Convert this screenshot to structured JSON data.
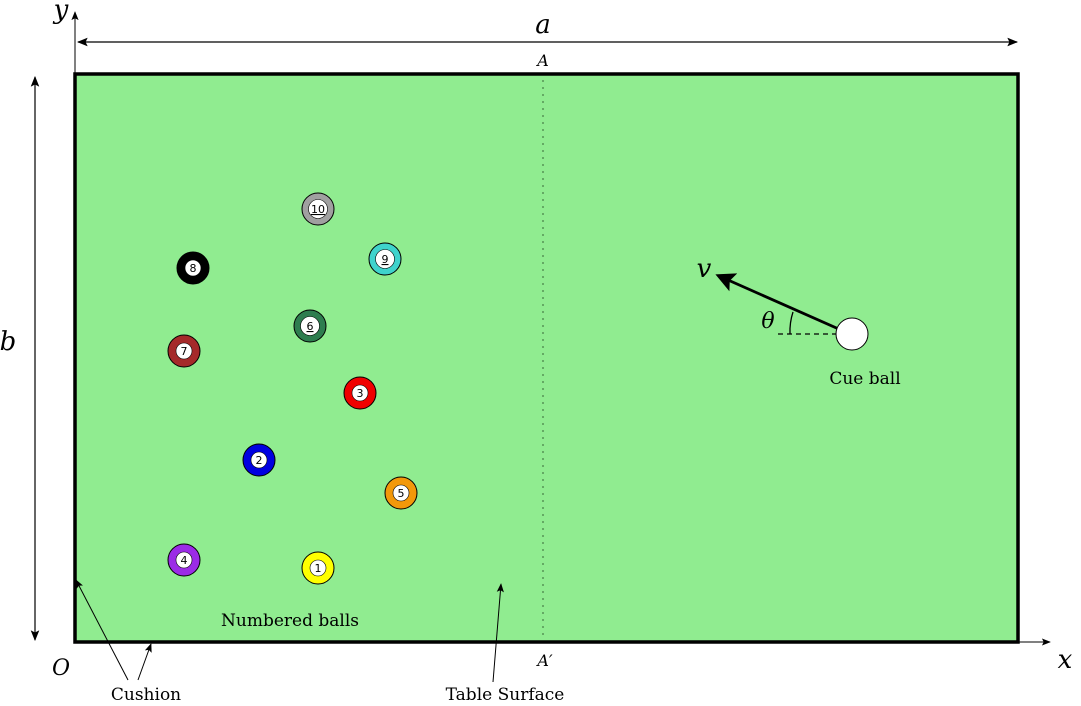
{
  "diagram": {
    "labels": {
      "width": "a",
      "height": "b",
      "x_axis": "x",
      "y_axis": "y",
      "origin": "O",
      "top_mark": "A",
      "bottom_mark": "A′",
      "velocity": "v",
      "angle": "θ",
      "cue_ball": "Cue ball",
      "numbered_balls": "Numbered balls",
      "cushion": "Cushion",
      "table_surface": "Table Surface"
    },
    "colors": {
      "felt": "#90EC90",
      "cue_ball": "#ffffff"
    },
    "balls": [
      {
        "number": "1",
        "color": "#FFFF00",
        "stripe": false
      },
      {
        "number": "2",
        "color": "#0000E0",
        "stripe": false
      },
      {
        "number": "3",
        "color": "#F00000",
        "stripe": false
      },
      {
        "number": "4",
        "color": "#9B2BE6",
        "stripe": false
      },
      {
        "number": "5",
        "color": "#F2980A",
        "stripe": false
      },
      {
        "number": "6",
        "color": "#2E7D4F",
        "stripe": true
      },
      {
        "number": "7",
        "color": "#A52A2A",
        "stripe": false
      },
      {
        "number": "8",
        "color": "#000000",
        "stripe": false
      },
      {
        "number": "9",
        "color": "#3FD3CC",
        "stripe": true
      },
      {
        "number": "10",
        "color": "#A0A0A0",
        "stripe": true
      }
    ]
  }
}
